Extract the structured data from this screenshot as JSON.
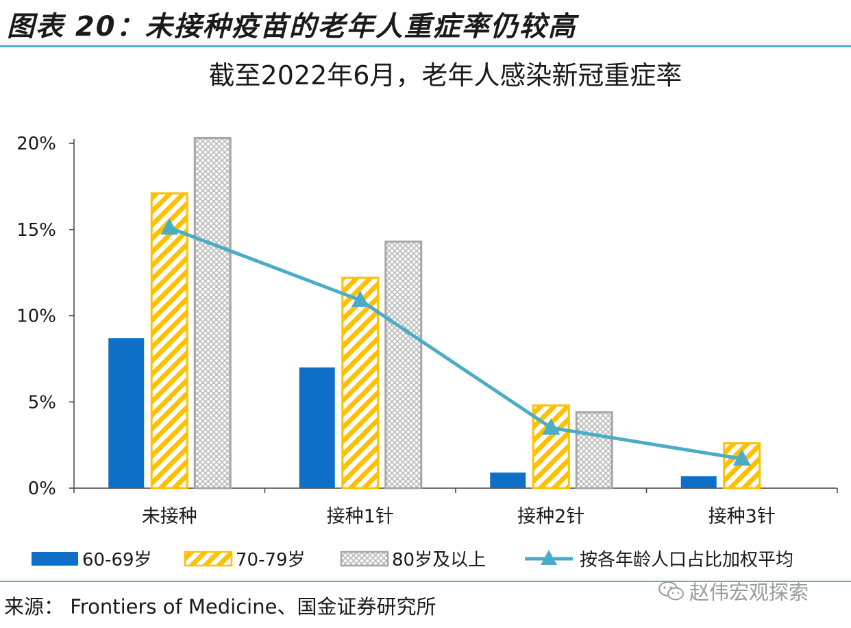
{
  "figure": {
    "title": "图表 20：未接种疫苗的老年人重症率仍较高",
    "source": "来源： Frontiers of Medicine、国金证券研究所",
    "watermark": "赵伟宏观探索",
    "icon": "wechat-icon"
  },
  "chart_data": {
    "type": "bar",
    "title": "截至2022年6月，老年人感染新冠重症率",
    "xlabel": "",
    "ylabel": "",
    "ylim": [
      0,
      20
    ],
    "yticks": [
      "0%",
      "5%",
      "10%",
      "15%",
      "20%"
    ],
    "categories": [
      "未接种",
      "接种1针",
      "接种2针",
      "接种3针"
    ],
    "series": [
      {
        "name": "60-69岁",
        "type": "bar",
        "color": "#0f6fc6",
        "pattern": "solid",
        "values": [
          8.7,
          7.0,
          0.9,
          0.7
        ]
      },
      {
        "name": "70-79岁",
        "type": "bar",
        "color": "#ffc000",
        "pattern": "diagonal-hatch",
        "values": [
          17.1,
          12.2,
          4.8,
          2.6
        ]
      },
      {
        "name": "80岁及以上",
        "type": "bar",
        "color": "#a6a6a6",
        "pattern": "crosshatch",
        "values": [
          20.3,
          14.3,
          4.4,
          null
        ]
      },
      {
        "name": "按各年龄人口占比加权平均",
        "type": "line",
        "color": "#4bacc6",
        "marker": "triangle",
        "values": [
          15.1,
          10.9,
          3.5,
          1.7
        ]
      }
    ],
    "grid": false,
    "legend_position": "bottom"
  }
}
